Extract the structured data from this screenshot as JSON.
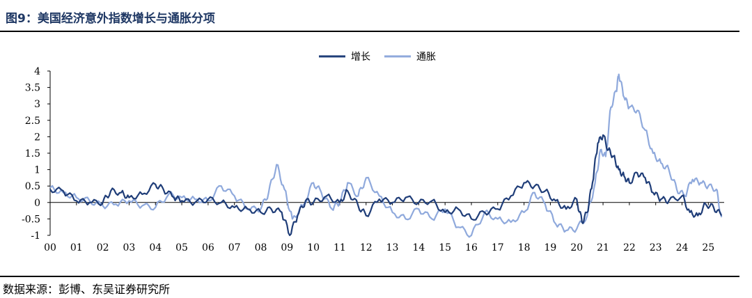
{
  "figure": {
    "title": "图9：美国经济意外指数增长与通胀分项",
    "source": "数据来源：彭博、东吴证券研究所"
  },
  "colors": {
    "growth": "#1f3d78",
    "inflation": "#8fa9dc",
    "title": "#1f3864"
  },
  "chart_data": {
    "type": "line",
    "title": "",
    "xlabel": "",
    "ylabel": "",
    "xlim": [
      2000,
      2025.6
    ],
    "ylim": [
      -1,
      4
    ],
    "yticks": [
      4,
      3.5,
      3,
      2.5,
      2,
      1.5,
      1,
      0.5,
      0,
      -0.5,
      -1
    ],
    "xticks": [
      "00",
      "01",
      "02",
      "03",
      "04",
      "05",
      "06",
      "07",
      "08",
      "09",
      "10",
      "11",
      "12",
      "13",
      "14",
      "15",
      "16",
      "17",
      "18",
      "19",
      "20",
      "21",
      "22",
      "23",
      "24",
      "25"
    ],
    "grid": false,
    "legend": "top-center",
    "series": [
      {
        "name": "增长",
        "x": [
          2000.0,
          2000.5,
          2001.0,
          2001.5,
          2002.0,
          2002.3,
          2002.7,
          2003.0,
          2003.5,
          2004.0,
          2004.3,
          2004.7,
          2005.0,
          2005.5,
          2006.0,
          2006.5,
          2007.0,
          2007.5,
          2008.0,
          2008.4,
          2008.8,
          2009.1,
          2009.4,
          2009.7,
          2010.0,
          2010.5,
          2011.0,
          2011.3,
          2011.7,
          2012.0,
          2012.5,
          2013.0,
          2013.5,
          2014.0,
          2014.5,
          2015.0,
          2015.5,
          2016.0,
          2016.5,
          2017.0,
          2017.5,
          2018.0,
          2018.4,
          2018.8,
          2019.2,
          2019.6,
          2020.0,
          2020.2,
          2020.4,
          2020.6,
          2020.8,
          2021.0,
          2021.2,
          2021.4,
          2021.6,
          2021.8,
          2022.0,
          2022.3,
          2022.6,
          2022.9,
          2023.2,
          2023.5,
          2024.0,
          2024.3,
          2024.6,
          2024.9,
          2025.2,
          2025.5
        ],
        "values": [
          0.4,
          0.35,
          0.05,
          0.0,
          0.0,
          0.35,
          0.3,
          0.15,
          0.25,
          0.55,
          0.4,
          0.15,
          0.05,
          0.0,
          0.1,
          0.0,
          -0.15,
          -0.2,
          -0.3,
          -0.2,
          -0.3,
          -1.0,
          -0.4,
          0.05,
          0.0,
          0.2,
          0.0,
          0.35,
          -0.1,
          -0.4,
          0.1,
          0.0,
          0.15,
          0.0,
          0.05,
          -0.3,
          -0.2,
          -0.5,
          -0.3,
          -0.2,
          0.2,
          0.6,
          0.5,
          0.35,
          0.05,
          -0.2,
          0.1,
          -0.6,
          -0.3,
          0.6,
          1.8,
          2.05,
          1.6,
          1.4,
          1.0,
          0.8,
          0.6,
          0.9,
          0.75,
          0.3,
          0.1,
          0.05,
          0.2,
          -0.3,
          -0.4,
          -0.05,
          -0.15,
          -0.4
        ]
      },
      {
        "name": "通胀",
        "x": [
          2000.0,
          2000.5,
          2001.0,
          2001.5,
          2002.0,
          2002.5,
          2003.0,
          2003.5,
          2004.0,
          2004.5,
          2005.0,
          2005.5,
          2006.0,
          2006.5,
          2007.0,
          2007.5,
          2008.0,
          2008.3,
          2008.6,
          2008.9,
          2009.2,
          2009.6,
          2010.0,
          2010.3,
          2010.7,
          2011.0,
          2011.3,
          2011.7,
          2012.0,
          2012.5,
          2013.0,
          2013.5,
          2014.0,
          2014.5,
          2015.0,
          2015.5,
          2016.0,
          2016.5,
          2017.0,
          2017.5,
          2018.0,
          2018.4,
          2018.8,
          2019.2,
          2019.6,
          2020.0,
          2020.4,
          2020.7,
          2020.9,
          2021.1,
          2021.3,
          2021.5,
          2021.6,
          2021.8,
          2022.0,
          2022.3,
          2022.6,
          2022.9,
          2023.2,
          2023.5,
          2023.8,
          2024.1,
          2024.4,
          2024.7,
          2025.0,
          2025.3,
          2025.5
        ],
        "values": [
          0.45,
          0.3,
          0.15,
          0.05,
          -0.1,
          -0.05,
          0.05,
          -0.1,
          -0.15,
          0.25,
          0.15,
          0.1,
          0.05,
          0.5,
          0.2,
          -0.2,
          -0.2,
          0.3,
          1.15,
          0.4,
          -0.5,
          -0.1,
          0.6,
          0.3,
          -0.2,
          0.0,
          0.6,
          0.2,
          0.75,
          0.2,
          -0.3,
          -0.5,
          -0.2,
          -0.5,
          -0.2,
          -0.75,
          -1.0,
          -0.3,
          -0.5,
          -0.6,
          -0.3,
          0.3,
          -0.05,
          -0.65,
          -0.85,
          -0.8,
          -0.4,
          0.6,
          1.6,
          1.4,
          2.9,
          3.4,
          3.9,
          3.2,
          2.9,
          2.8,
          2.2,
          1.5,
          1.2,
          1.0,
          0.4,
          0.2,
          0.7,
          0.6,
          0.5,
          0.4,
          -0.45
        ]
      }
    ]
  }
}
